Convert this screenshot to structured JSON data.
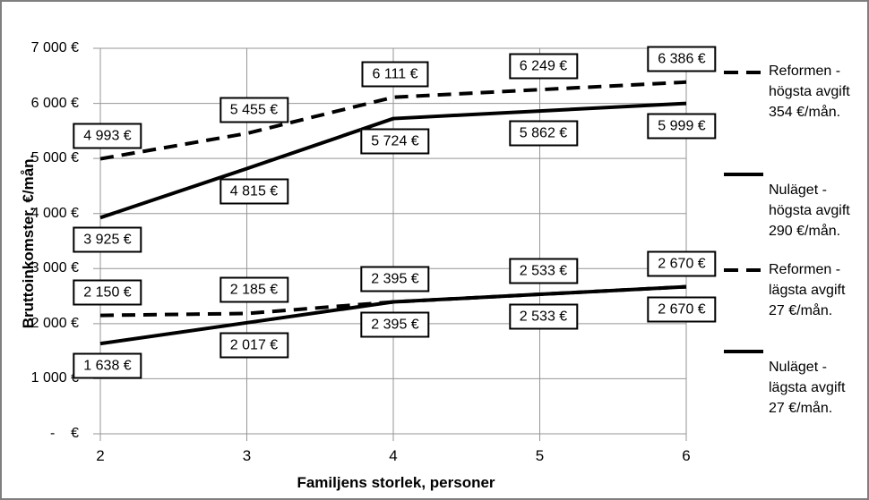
{
  "frame": {
    "background": "#ffffff",
    "border_color": "#7f7f7f"
  },
  "chart_data": {
    "type": "line",
    "title": "",
    "xlabel": "Familjens storlek, personer",
    "ylabel": "Bruttoinkomster, €/mån.",
    "x": [
      2,
      3,
      4,
      5,
      6
    ],
    "x_tick_labels": [
      "2",
      "3",
      "4",
      "5",
      "6"
    ],
    "ylim": [
      0,
      7000
    ],
    "y_step": 1000,
    "y_ticks": [
      {
        "value": 7000,
        "label": "7 000 €"
      },
      {
        "value": 6000,
        "label": "6 000 €"
      },
      {
        "value": 5000,
        "label": "5 000 €"
      },
      {
        "value": 4000,
        "label": "4 000 €"
      },
      {
        "value": 3000,
        "label": "3 000 €"
      },
      {
        "value": 2000,
        "label": "2 000 €"
      },
      {
        "value": 1000,
        "label": "1 000 €"
      },
      {
        "value": 0,
        "label": "-    €"
      }
    ],
    "grid": true,
    "legend_position": "right",
    "series": [
      {
        "name": "Reformen - högsta avgift 354 €/mån.",
        "style": "dashed",
        "values": [
          4993,
          5455,
          6111,
          6249,
          6386
        ],
        "point_labels": [
          "4 993 €",
          "5 455 €",
          "6 111 €",
          "6 249 €",
          "6 386 €"
        ],
        "label_side": "above",
        "legend_lines": [
          "Reformen -",
          "högsta avgift",
          "354 €/mån."
        ]
      },
      {
        "name": "Nuläget - högsta avgift 290 €/mån.",
        "style": "solid",
        "values": [
          3925,
          4815,
          5724,
          5862,
          5999
        ],
        "point_labels": [
          "3 925 €",
          "4 815 €",
          "5 724 €",
          "5 862 €",
          "5 999 €"
        ],
        "label_side": "below",
        "legend_lines": [
          "Nuläget -",
          "högsta avgift",
          "290 €/mån."
        ]
      },
      {
        "name": "Reformen - lägsta avgift 27 €/mån.",
        "style": "dashed",
        "values": [
          2150,
          2185,
          2395,
          2533,
          2670
        ],
        "point_labels": [
          "2 150 €",
          "2 185 €",
          "2 395 €",
          "2 533 €",
          "2 670 €"
        ],
        "label_side": "above",
        "legend_lines": [
          "Reformen -",
          "lägsta avgift",
          "27 €/mån."
        ]
      },
      {
        "name": "Nuläget - lägsta avgift 27 €/mån.",
        "style": "solid",
        "values": [
          1638,
          2017,
          2395,
          2533,
          2670
        ],
        "point_labels": [
          "1 638 €",
          "2 017 €",
          "2 395 €",
          "2 533 €",
          "2 670 €"
        ],
        "label_side": "below",
        "legend_lines": [
          "Nuläget -",
          "lägsta avgift",
          "27 €/mån."
        ]
      }
    ],
    "colors": {
      "line": "#000000",
      "grid": "#969696",
      "label_bg": "#ffffff",
      "label_border": "#000000",
      "text": "#000000"
    }
  }
}
